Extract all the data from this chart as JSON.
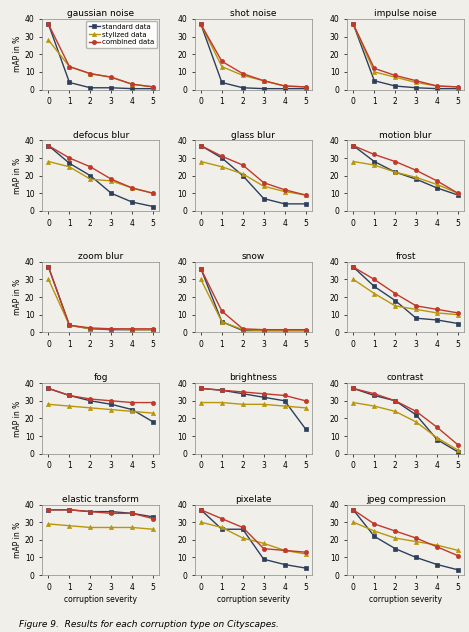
{
  "titles": [
    "gaussian noise",
    "shot noise",
    "impulse noise",
    "defocus blur",
    "glass blur",
    "motion blur",
    "zoom blur",
    "snow",
    "frost",
    "fog",
    "brightness",
    "contrast",
    "elastic transform",
    "pixelate",
    "jpeg compression"
  ],
  "x": [
    0,
    1,
    2,
    3,
    4,
    5
  ],
  "series": {
    "standard": {
      "color": "#2e3f5c",
      "marker": "s",
      "label": "standard data"
    },
    "stylized": {
      "color": "#b8960c",
      "marker": "^",
      "label": "stylized data"
    },
    "combined": {
      "color": "#c0392b",
      "marker": "o",
      "label": "combined data"
    }
  },
  "data": {
    "gaussian noise": {
      "standard": [
        37,
        4,
        1,
        1,
        0.5,
        0.5
      ],
      "stylized": [
        28,
        13,
        9,
        7,
        3,
        1.5
      ],
      "combined": [
        37,
        13,
        9,
        7,
        3,
        1.5
      ]
    },
    "shot noise": {
      "standard": [
        37,
        4,
        1,
        0.5,
        0.5,
        0.5
      ],
      "stylized": [
        37,
        13,
        8,
        5,
        2,
        1.5
      ],
      "combined": [
        37,
        16,
        9,
        5,
        2,
        1.5
      ]
    },
    "impulse noise": {
      "standard": [
        37,
        5,
        2,
        1,
        0.5,
        0.5
      ],
      "stylized": [
        37,
        10,
        7,
        4,
        2,
        1.5
      ],
      "combined": [
        37,
        12,
        8,
        5,
        2,
        1.5
      ]
    },
    "defocus blur": {
      "standard": [
        37,
        27,
        20,
        10,
        5,
        2.5
      ],
      "stylized": [
        28,
        25,
        18,
        17,
        13,
        10
      ],
      "combined": [
        37,
        30,
        25,
        18,
        13,
        10
      ]
    },
    "glass blur": {
      "standard": [
        37,
        30,
        20,
        7,
        4,
        4
      ],
      "stylized": [
        28,
        25,
        21,
        14,
        11,
        9
      ],
      "combined": [
        37,
        31,
        26,
        16,
        12,
        9
      ]
    },
    "motion blur": {
      "standard": [
        37,
        28,
        22,
        18,
        13,
        9
      ],
      "stylized": [
        28,
        26,
        22,
        19,
        15,
        10
      ],
      "combined": [
        37,
        32,
        28,
        23,
        17,
        10
      ]
    },
    "zoom blur": {
      "standard": [
        37,
        4,
        2,
        1.5,
        1.5,
        1.5
      ],
      "stylized": [
        30,
        4,
        2,
        2,
        1.5,
        1.5
      ],
      "combined": [
        37,
        4,
        2.5,
        2,
        2,
        2
      ]
    },
    "snow": {
      "standard": [
        36,
        6,
        1,
        1,
        1,
        1
      ],
      "stylized": [
        30,
        6,
        1.5,
        1,
        1,
        1
      ],
      "combined": [
        36,
        12,
        2,
        1.5,
        1.5,
        1.5
      ]
    },
    "frost": {
      "standard": [
        37,
        26,
        18,
        8,
        7,
        5
      ],
      "stylized": [
        30,
        22,
        15,
        13,
        11,
        10
      ],
      "combined": [
        37,
        30,
        22,
        15,
        13,
        11
      ]
    },
    "fog": {
      "standard": [
        37,
        33,
        30,
        28,
        25,
        18
      ],
      "stylized": [
        28,
        27,
        26,
        25,
        24,
        23
      ],
      "combined": [
        37,
        33,
        31,
        30,
        29,
        29
      ]
    },
    "brightness": {
      "standard": [
        37,
        36,
        34,
        32,
        30,
        14
      ],
      "stylized": [
        29,
        29,
        28,
        28,
        27,
        26
      ],
      "combined": [
        37,
        36,
        35,
        34,
        33,
        30
      ]
    },
    "contrast": {
      "standard": [
        37,
        33,
        30,
        22,
        8,
        1
      ],
      "stylized": [
        29,
        27,
        24,
        18,
        9,
        2
      ],
      "combined": [
        37,
        34,
        30,
        24,
        15,
        5
      ]
    },
    "elastic transform": {
      "standard": [
        37,
        37,
        36,
        36,
        35,
        33
      ],
      "stylized": [
        29,
        28,
        27,
        27,
        27,
        26
      ],
      "combined": [
        37,
        37,
        36,
        35,
        35,
        32
      ]
    },
    "pixelate": {
      "standard": [
        37,
        26,
        26,
        9,
        6,
        4
      ],
      "stylized": [
        30,
        27,
        21,
        18,
        14,
        12
      ],
      "combined": [
        37,
        32,
        27,
        15,
        14,
        13
      ]
    },
    "jpeg compression": {
      "standard": [
        37,
        22,
        15,
        10,
        6,
        3
      ],
      "stylized": [
        30,
        25,
        21,
        19,
        17,
        14
      ],
      "combined": [
        37,
        29,
        25,
        21,
        16,
        11
      ]
    }
  },
  "ylabel": "mAP in %",
  "xlabel": "corruption severity",
  "ylim": [
    0,
    40
  ],
  "yticks": [
    0,
    10,
    20,
    30,
    40
  ],
  "xticks": [
    0,
    1,
    2,
    3,
    4,
    5
  ],
  "figure_caption": "Figure 9.  Results for each corruption type on Cityscapes.",
  "bg_color": "#f0efea"
}
